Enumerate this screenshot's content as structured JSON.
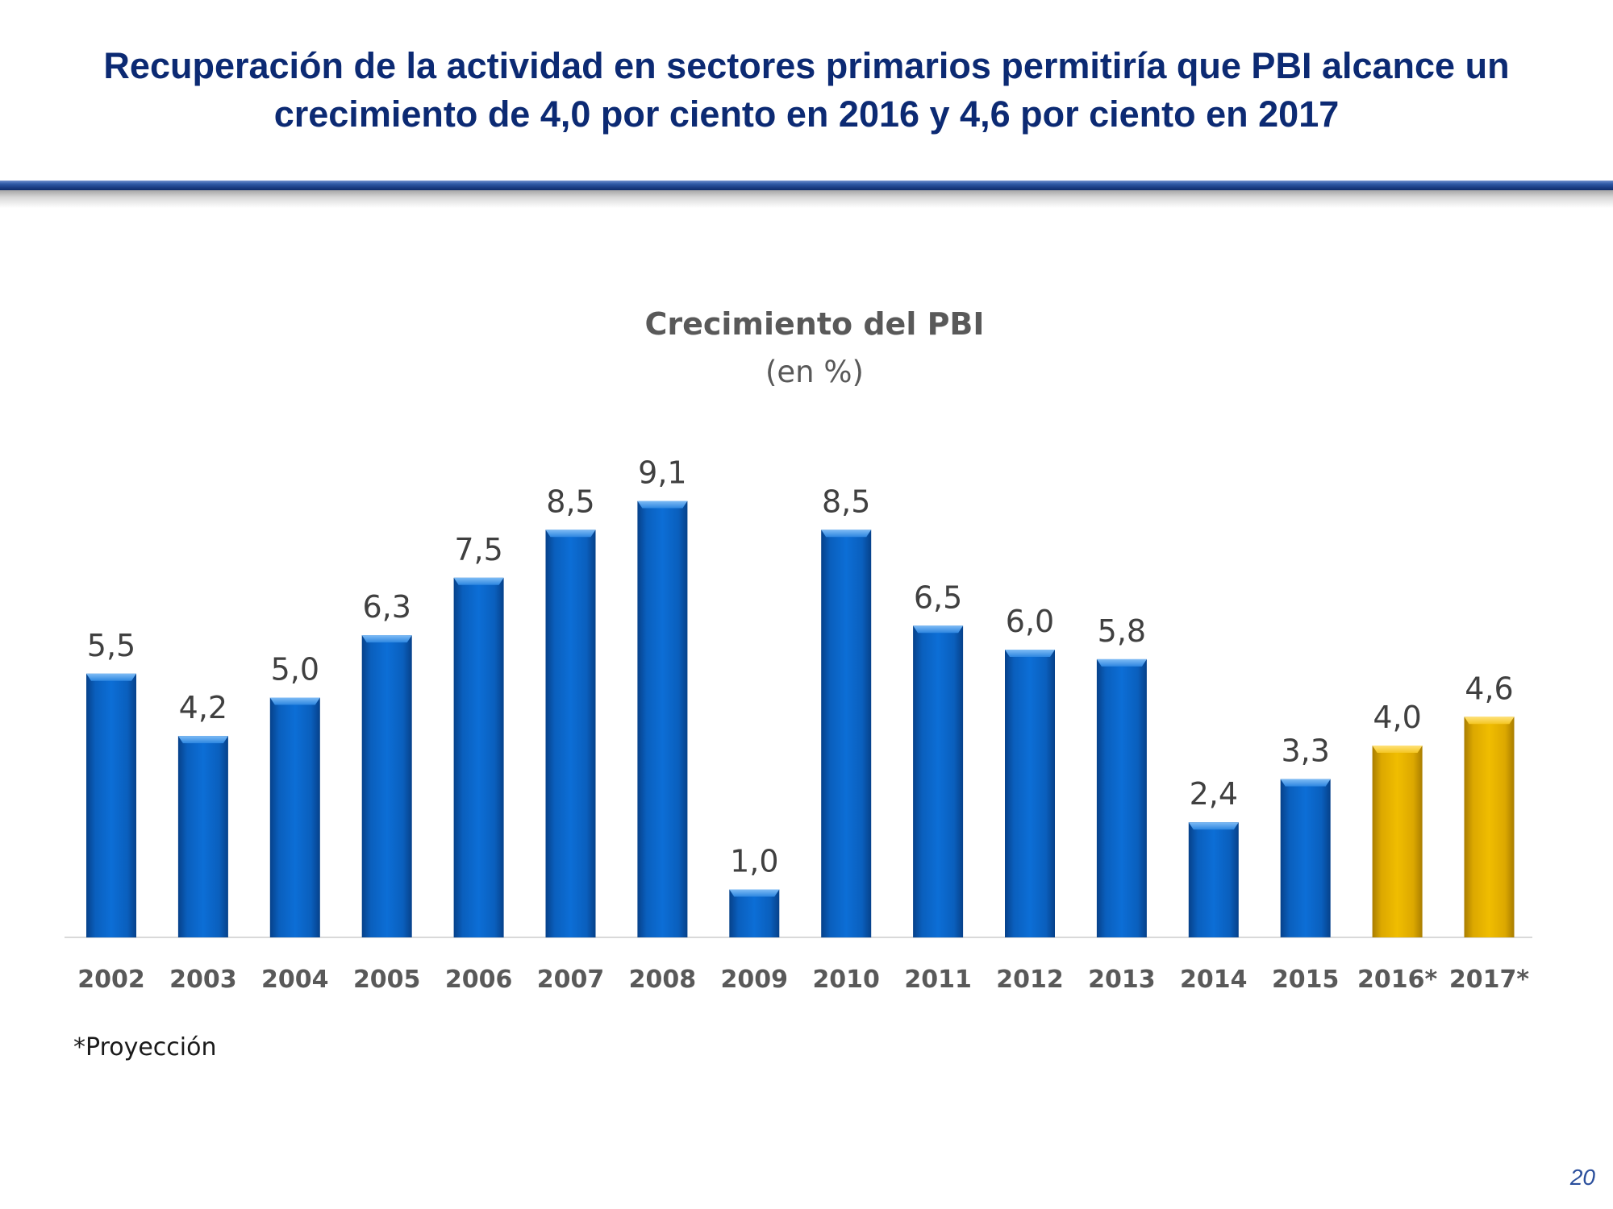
{
  "slide": {
    "title_line1": "Recuperación de la actividad en sectores primarios permitiría que PBI alcance un",
    "title_line2": "crecimiento de 4,0 por ciento en 2016 y 4,6 por ciento en 2017",
    "footnote": "*Proyección",
    "page_number": "20"
  },
  "colors": {
    "title": "#0c2a73",
    "bar_actual": "#0a64c4",
    "bar_projection": "#e8b400",
    "chart_text": "#595959",
    "axis_line": "#d9d9d9"
  },
  "chart_data": {
    "type": "bar",
    "title": "Crecimiento del PBI",
    "subtitle": "(en %)",
    "categories": [
      "2002",
      "2003",
      "2004",
      "2005",
      "2006",
      "2007",
      "2008",
      "2009",
      "2010",
      "2011",
      "2012",
      "2013",
      "2014",
      "2015",
      "2016*",
      "2017*"
    ],
    "values": [
      5.5,
      4.2,
      5.0,
      6.3,
      7.5,
      8.5,
      9.1,
      1.0,
      8.5,
      6.5,
      6.0,
      5.8,
      2.4,
      3.3,
      4.0,
      4.6
    ],
    "value_labels": [
      "5,5",
      "4,2",
      "5,0",
      "6,3",
      "7,5",
      "8,5",
      "9,1",
      "1,0",
      "8,5",
      "6,5",
      "6,0",
      "5,8",
      "2,4",
      "3,3",
      "4,0",
      "4,6"
    ],
    "projection": [
      false,
      false,
      false,
      false,
      false,
      false,
      false,
      false,
      false,
      false,
      false,
      false,
      false,
      false,
      true,
      true
    ],
    "ylim": [
      0,
      10
    ],
    "grid": false,
    "legend": "none",
    "data_labels": true
  }
}
